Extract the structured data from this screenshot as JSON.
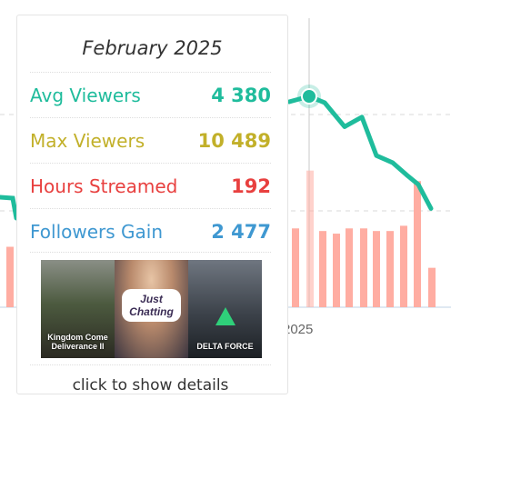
{
  "chart_data": {
    "type": "bar+line",
    "x_tick_label": "2025",
    "series": [
      {
        "type": "bar",
        "color": "#ffada2",
        "values": [
          3000,
          5200,
          2900,
          2800,
          3000,
          3000,
          2900,
          2900,
          3100,
          4800,
          1500
        ]
      },
      {
        "type": "line",
        "color": "#1fbc9c",
        "values": [
          4380,
          4100,
          3950,
          3700,
          3850,
          3150,
          3050,
          2900,
          2700,
          2350
        ]
      }
    ],
    "left_partial": {
      "bar_value": 2300,
      "line_value": 2300
    },
    "highlight_index": 0
  },
  "tooltip": {
    "title": "February 2025",
    "rows": [
      {
        "label": "Avg Viewers",
        "value": "4 380",
        "color": "#1fbc9c"
      },
      {
        "label": "Max Viewers",
        "value": "10 489",
        "color": "#c2b02a"
      },
      {
        "label": "Hours Streamed",
        "value": "192",
        "color": "#e8403f"
      },
      {
        "label": "Followers Gain",
        "value": "2 477",
        "color": "#3f98d1"
      }
    ],
    "games": [
      {
        "name": "Kingdom Come Deliverance II",
        "icon": "game-cover-kingdom-come"
      },
      {
        "name": "Just Chatting",
        "icon": "game-cover-just-chatting"
      },
      {
        "name": "DELTA FORCE",
        "icon": "game-cover-delta-force"
      }
    ],
    "footer": "click to show details"
  }
}
